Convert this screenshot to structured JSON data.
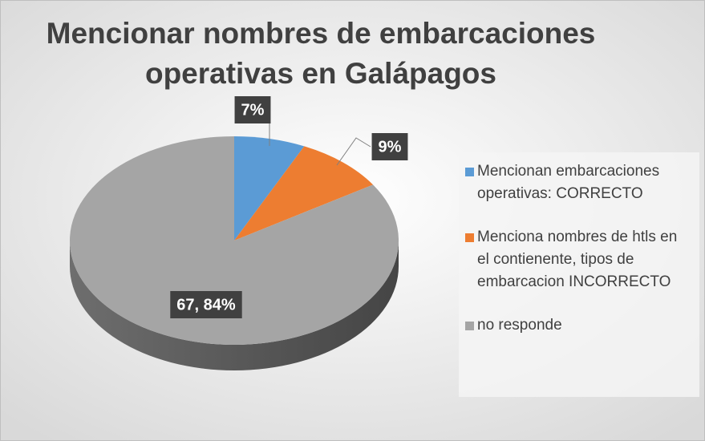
{
  "chart_data": {
    "type": "pie",
    "title": [
      "Mencionar nombres de embarcaciones",
      "operativas en Galápagos"
    ],
    "categories": [
      "Mencionan embarcaciones operativas: CORRECTO",
      "Menciona nombres de htls en el contienente, tipos de embarcacion INCORRECTO",
      "no responde"
    ],
    "values": [
      7,
      9,
      84
    ],
    "value_labels": [
      "7%",
      "9%",
      "67, 84%"
    ],
    "colors": [
      "#5b9bd5",
      "#ed7d31",
      "#a5a5a5"
    ],
    "legend": "right"
  }
}
